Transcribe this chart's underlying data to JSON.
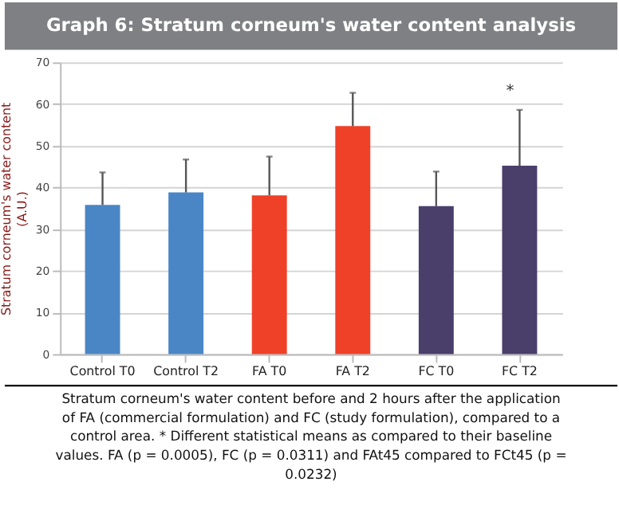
{
  "chart_data": {
    "type": "bar",
    "title": "Graph 6: Stratum corneum's water content analysis",
    "ylabel": "Stratum corneum's water content (A.U.)",
    "categories": [
      "Control T0",
      "Control T2",
      "FA T0",
      "FA T2",
      "FC T0",
      "FC T2"
    ],
    "values": [
      35.8,
      38.8,
      38.1,
      54.7,
      35.5,
      45.2
    ],
    "colors": [
      "#4a86c6",
      "#4a86c6",
      "#ee4128",
      "#ee4128",
      "#4a3f6b",
      "#4a3f6b"
    ],
    "errors": [
      [
        35.8,
        43.6
      ],
      [
        38.8,
        46.7
      ],
      [
        38.1,
        47.4
      ],
      [
        54.7,
        62.7
      ],
      [
        35.5,
        43.8
      ],
      [
        45.2,
        58.6
      ]
    ],
    "ylim": [
      0,
      70
    ],
    "yticks": [
      0,
      10,
      20,
      30,
      40,
      50,
      60,
      70
    ],
    "grid": "y",
    "annotations": [
      {
        "text": "*",
        "x": "FC T2",
        "y": 58.6
      },
      "Stratum corneum's water content before and 2 hours after the application of FA (commercial formulation) and FC (study formulation), compared to a control area. * Different statistical means as compared to their baseline values. FA (p = 0.0005), FC (p = 0.0311) and FAt45 compared to FCt45 (p = 0.0232)"
    ]
  }
}
